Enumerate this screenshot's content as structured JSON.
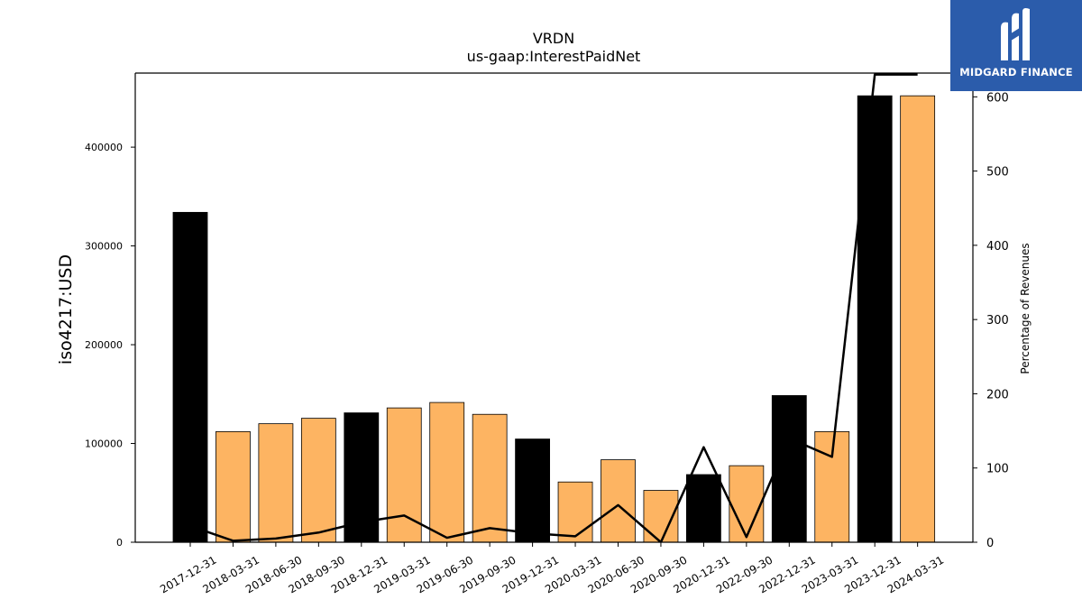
{
  "logo": {
    "text": "MIDGARD FINANCE",
    "background_color": "#2b5cab",
    "icon": "midgard-m-logo-icon"
  },
  "chart_data": {
    "type": "bar",
    "title": "VRDN",
    "subtitle": "us-gaap:InterestPaidNet",
    "ylabel": "iso4217:USD",
    "y2label": "Percentage of Revenues",
    "ylim": [
      0,
      475000
    ],
    "y2lim": [
      0,
      632
    ],
    "yticks": [
      0,
      100000,
      200000,
      300000,
      400000
    ],
    "y2ticks": [
      0,
      100,
      200,
      300,
      400,
      500,
      600
    ],
    "grid": false,
    "categories": [
      "2017-12-31",
      "2018-03-31",
      "2018-06-30",
      "2018-09-30",
      "2018-12-31",
      "2019-03-31",
      "2019-06-30",
      "2019-09-30",
      "2019-12-31",
      "2020-03-31",
      "2020-06-30",
      "2020-09-30",
      "2020-12-31",
      "2022-09-30",
      "2022-12-31",
      "2023-03-31",
      "2023-12-31",
      "2024-03-31"
    ],
    "values": [
      334000,
      112000,
      120000,
      125500,
      131000,
      136000,
      141500,
      129500,
      104500,
      61000,
      83500,
      52500,
      68500,
      77500,
      148500,
      112000,
      452000,
      452000
    ],
    "bar_colors": [
      "#000000",
      "#fdb462",
      "#fdb462",
      "#fdb462",
      "#000000",
      "#fdb462",
      "#fdb462",
      "#fdb462",
      "#000000",
      "#fdb462",
      "#fdb462",
      "#fdb462",
      "#000000",
      "#fdb462",
      "#000000",
      "#fdb462",
      "#000000",
      "#fdb462"
    ],
    "line_values": [
      22,
      2,
      5,
      13,
      27,
      36,
      6,
      19,
      12,
      8,
      50,
      0,
      128,
      7,
      140,
      115,
      630,
      630
    ],
    "line_color": "#000000"
  }
}
